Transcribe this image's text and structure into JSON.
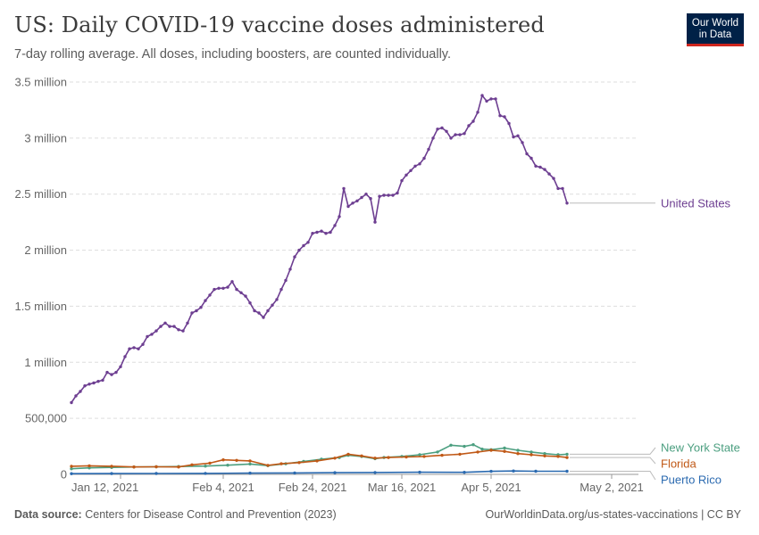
{
  "header": {
    "title": "US: Daily COVID-19 vaccine doses administered",
    "subtitle": "7-day rolling average. All doses, including boosters, are counted individually."
  },
  "logo": {
    "line1": "Our World",
    "line2": "in Data"
  },
  "footer": {
    "source_label": "Data source:",
    "source_text": "Centers for Disease Control and Prevention (2023)",
    "url": "OurWorldinData.org/us-states-vaccinations | CC BY"
  },
  "colors": {
    "united_states": "#6d3e91",
    "new_york_state": "#4c9f80",
    "florida": "#c05917",
    "puerto_rico": "#2b6ab0",
    "grid": "#dddddd",
    "axis": "#999999",
    "tick_text": "#666666"
  },
  "chart_data": {
    "type": "line",
    "title": "US: Daily COVID-19 vaccine doses administered",
    "x_start": "2021-01-01",
    "x_end": "2021-05-08",
    "x_ticks": [
      {
        "date": "2021-01-12",
        "label": "Jan 12, 2021"
      },
      {
        "date": "2021-02-04",
        "label": "Feb 4, 2021"
      },
      {
        "date": "2021-02-24",
        "label": "Feb 24, 2021"
      },
      {
        "date": "2021-03-16",
        "label": "Mar 16, 2021"
      },
      {
        "date": "2021-04-05",
        "label": "Apr 5, 2021"
      },
      {
        "date": "2021-05-02",
        "label": "May 2, 2021"
      }
    ],
    "y_ticks": [
      {
        "value": 0,
        "label": "0"
      },
      {
        "value": 500000,
        "label": "500,000"
      },
      {
        "value": 1000000,
        "label": "1 million"
      },
      {
        "value": 1500000,
        "label": "1.5 million"
      },
      {
        "value": 2000000,
        "label": "2 million"
      },
      {
        "value": 2500000,
        "label": "2.5 million"
      },
      {
        "value": 3000000,
        "label": "3 million"
      },
      {
        "value": 3500000,
        "label": "3.5 million"
      }
    ],
    "ylim": [
      0,
      3500000
    ],
    "grid": true,
    "legend": "right-end-labels",
    "series": [
      {
        "name": "United States",
        "color": "#6d3e91",
        "points": [
          [
            "2021-01-01",
            640000
          ],
          [
            "2021-01-02",
            700000
          ],
          [
            "2021-01-03",
            740000
          ],
          [
            "2021-01-04",
            790000
          ],
          [
            "2021-01-05",
            805000
          ],
          [
            "2021-01-06",
            815000
          ],
          [
            "2021-01-07",
            830000
          ],
          [
            "2021-01-08",
            840000
          ],
          [
            "2021-01-09",
            910000
          ],
          [
            "2021-01-10",
            890000
          ],
          [
            "2021-01-11",
            910000
          ],
          [
            "2021-01-12",
            960000
          ],
          [
            "2021-01-13",
            1050000
          ],
          [
            "2021-01-14",
            1120000
          ],
          [
            "2021-01-15",
            1130000
          ],
          [
            "2021-01-16",
            1120000
          ],
          [
            "2021-01-17",
            1160000
          ],
          [
            "2021-01-18",
            1230000
          ],
          [
            "2021-01-19",
            1250000
          ],
          [
            "2021-01-20",
            1280000
          ],
          [
            "2021-01-21",
            1320000
          ],
          [
            "2021-01-22",
            1350000
          ],
          [
            "2021-01-23",
            1320000
          ],
          [
            "2021-01-24",
            1320000
          ],
          [
            "2021-01-25",
            1290000
          ],
          [
            "2021-01-26",
            1280000
          ],
          [
            "2021-01-27",
            1350000
          ],
          [
            "2021-01-28",
            1440000
          ],
          [
            "2021-01-29",
            1460000
          ],
          [
            "2021-01-30",
            1490000
          ],
          [
            "2021-01-31",
            1550000
          ],
          [
            "2021-02-01",
            1600000
          ],
          [
            "2021-02-02",
            1650000
          ],
          [
            "2021-02-03",
            1660000
          ],
          [
            "2021-02-04",
            1660000
          ],
          [
            "2021-02-05",
            1670000
          ],
          [
            "2021-02-06",
            1720000
          ],
          [
            "2021-02-07",
            1650000
          ],
          [
            "2021-02-08",
            1620000
          ],
          [
            "2021-02-09",
            1590000
          ],
          [
            "2021-02-10",
            1530000
          ],
          [
            "2021-02-11",
            1460000
          ],
          [
            "2021-02-12",
            1440000
          ],
          [
            "2021-02-13",
            1400000
          ],
          [
            "2021-02-14",
            1460000
          ],
          [
            "2021-02-15",
            1510000
          ],
          [
            "2021-02-16",
            1560000
          ],
          [
            "2021-02-17",
            1650000
          ],
          [
            "2021-02-18",
            1730000
          ],
          [
            "2021-02-19",
            1830000
          ],
          [
            "2021-02-20",
            1940000
          ],
          [
            "2021-02-21",
            2000000
          ],
          [
            "2021-02-22",
            2040000
          ],
          [
            "2021-02-23",
            2070000
          ],
          [
            "2021-02-24",
            2150000
          ],
          [
            "2021-02-25",
            2160000
          ],
          [
            "2021-02-26",
            2170000
          ],
          [
            "2021-02-27",
            2150000
          ],
          [
            "2021-02-28",
            2160000
          ],
          [
            "2021-03-01",
            2220000
          ],
          [
            "2021-03-02",
            2300000
          ],
          [
            "2021-03-03",
            2550000
          ],
          [
            "2021-03-04",
            2390000
          ],
          [
            "2021-03-05",
            2420000
          ],
          [
            "2021-03-06",
            2440000
          ],
          [
            "2021-03-07",
            2470000
          ],
          [
            "2021-03-08",
            2500000
          ],
          [
            "2021-03-09",
            2460000
          ],
          [
            "2021-03-10",
            2250000
          ],
          [
            "2021-03-11",
            2480000
          ],
          [
            "2021-03-12",
            2490000
          ],
          [
            "2021-03-13",
            2490000
          ],
          [
            "2021-03-14",
            2490000
          ],
          [
            "2021-03-15",
            2510000
          ],
          [
            "2021-03-16",
            2620000
          ],
          [
            "2021-03-17",
            2670000
          ],
          [
            "2021-03-18",
            2710000
          ],
          [
            "2021-03-19",
            2750000
          ],
          [
            "2021-03-20",
            2770000
          ],
          [
            "2021-03-21",
            2820000
          ],
          [
            "2021-03-22",
            2900000
          ],
          [
            "2021-03-23",
            3000000
          ],
          [
            "2021-03-24",
            3080000
          ],
          [
            "2021-03-25",
            3090000
          ],
          [
            "2021-03-26",
            3060000
          ],
          [
            "2021-03-27",
            3000000
          ],
          [
            "2021-03-28",
            3030000
          ],
          [
            "2021-03-29",
            3030000
          ],
          [
            "2021-03-30",
            3040000
          ],
          [
            "2021-03-31",
            3110000
          ],
          [
            "2021-04-01",
            3150000
          ],
          [
            "2021-04-02",
            3230000
          ],
          [
            "2021-04-03",
            3380000
          ],
          [
            "2021-04-04",
            3330000
          ],
          [
            "2021-04-05",
            3350000
          ],
          [
            "2021-04-06",
            3350000
          ],
          [
            "2021-04-07",
            3200000
          ],
          [
            "2021-04-08",
            3190000
          ],
          [
            "2021-04-09",
            3130000
          ],
          [
            "2021-04-10",
            3010000
          ],
          [
            "2021-04-11",
            3020000
          ],
          [
            "2021-04-12",
            2960000
          ],
          [
            "2021-04-13",
            2860000
          ],
          [
            "2021-04-14",
            2820000
          ],
          [
            "2021-04-15",
            2750000
          ],
          [
            "2021-04-16",
            2740000
          ],
          [
            "2021-04-17",
            2720000
          ],
          [
            "2021-04-18",
            2680000
          ],
          [
            "2021-04-19",
            2640000
          ],
          [
            "2021-04-20",
            2550000
          ],
          [
            "2021-04-21",
            2550000
          ],
          [
            "2021-04-22",
            2420000
          ]
        ]
      },
      {
        "name": "New York State",
        "color": "#4c9f80",
        "points": [
          [
            "2021-01-01",
            50000
          ],
          [
            "2021-01-05",
            58000
          ],
          [
            "2021-01-10",
            62000
          ],
          [
            "2021-01-15",
            66000
          ],
          [
            "2021-01-20",
            68000
          ],
          [
            "2021-01-25",
            70000
          ],
          [
            "2021-01-31",
            74000
          ],
          [
            "2021-02-05",
            82000
          ],
          [
            "2021-02-10",
            92000
          ],
          [
            "2021-02-14",
            78000
          ],
          [
            "2021-02-18",
            95000
          ],
          [
            "2021-02-22",
            115000
          ],
          [
            "2021-02-26",
            135000
          ],
          [
            "2021-03-02",
            150000
          ],
          [
            "2021-03-04",
            170000
          ],
          [
            "2021-03-07",
            160000
          ],
          [
            "2021-03-10",
            140000
          ],
          [
            "2021-03-12",
            150000
          ],
          [
            "2021-03-16",
            160000
          ],
          [
            "2021-03-20",
            175000
          ],
          [
            "2021-03-24",
            200000
          ],
          [
            "2021-03-27",
            260000
          ],
          [
            "2021-03-30",
            250000
          ],
          [
            "2021-04-01",
            265000
          ],
          [
            "2021-04-03",
            225000
          ],
          [
            "2021-04-05",
            220000
          ],
          [
            "2021-04-08",
            235000
          ],
          [
            "2021-04-11",
            215000
          ],
          [
            "2021-04-14",
            200000
          ],
          [
            "2021-04-17",
            185000
          ],
          [
            "2021-04-20",
            175000
          ],
          [
            "2021-04-22",
            180000
          ]
        ]
      },
      {
        "name": "Florida",
        "color": "#c05917",
        "points": [
          [
            "2021-01-01",
            72000
          ],
          [
            "2021-01-05",
            76000
          ],
          [
            "2021-01-10",
            72000
          ],
          [
            "2021-01-15",
            66000
          ],
          [
            "2021-01-20",
            68000
          ],
          [
            "2021-01-25",
            66000
          ],
          [
            "2021-01-28",
            85000
          ],
          [
            "2021-02-01",
            100000
          ],
          [
            "2021-02-04",
            130000
          ],
          [
            "2021-02-07",
            125000
          ],
          [
            "2021-02-10",
            120000
          ],
          [
            "2021-02-14",
            80000
          ],
          [
            "2021-02-17",
            95000
          ],
          [
            "2021-02-21",
            105000
          ],
          [
            "2021-02-25",
            120000
          ],
          [
            "2021-03-01",
            145000
          ],
          [
            "2021-03-04",
            180000
          ],
          [
            "2021-03-07",
            165000
          ],
          [
            "2021-03-10",
            145000
          ],
          [
            "2021-03-13",
            150000
          ],
          [
            "2021-03-17",
            155000
          ],
          [
            "2021-03-21",
            160000
          ],
          [
            "2021-03-25",
            170000
          ],
          [
            "2021-03-29",
            180000
          ],
          [
            "2021-04-02",
            200000
          ],
          [
            "2021-04-05",
            215000
          ],
          [
            "2021-04-08",
            205000
          ],
          [
            "2021-04-11",
            185000
          ],
          [
            "2021-04-14",
            175000
          ],
          [
            "2021-04-17",
            165000
          ],
          [
            "2021-04-20",
            160000
          ],
          [
            "2021-04-22",
            150000
          ]
        ]
      },
      {
        "name": "Puerto Rico",
        "color": "#2b6ab0",
        "points": [
          [
            "2021-01-01",
            6000
          ],
          [
            "2021-01-10",
            7000
          ],
          [
            "2021-01-20",
            8000
          ],
          [
            "2021-01-31",
            9000
          ],
          [
            "2021-02-10",
            11000
          ],
          [
            "2021-02-20",
            13000
          ],
          [
            "2021-03-01",
            15000
          ],
          [
            "2021-03-10",
            17000
          ],
          [
            "2021-03-20",
            19000
          ],
          [
            "2021-03-30",
            18000
          ],
          [
            "2021-04-05",
            27000
          ],
          [
            "2021-04-10",
            30000
          ],
          [
            "2021-04-15",
            28000
          ],
          [
            "2021-04-22",
            28000
          ]
        ]
      }
    ]
  }
}
